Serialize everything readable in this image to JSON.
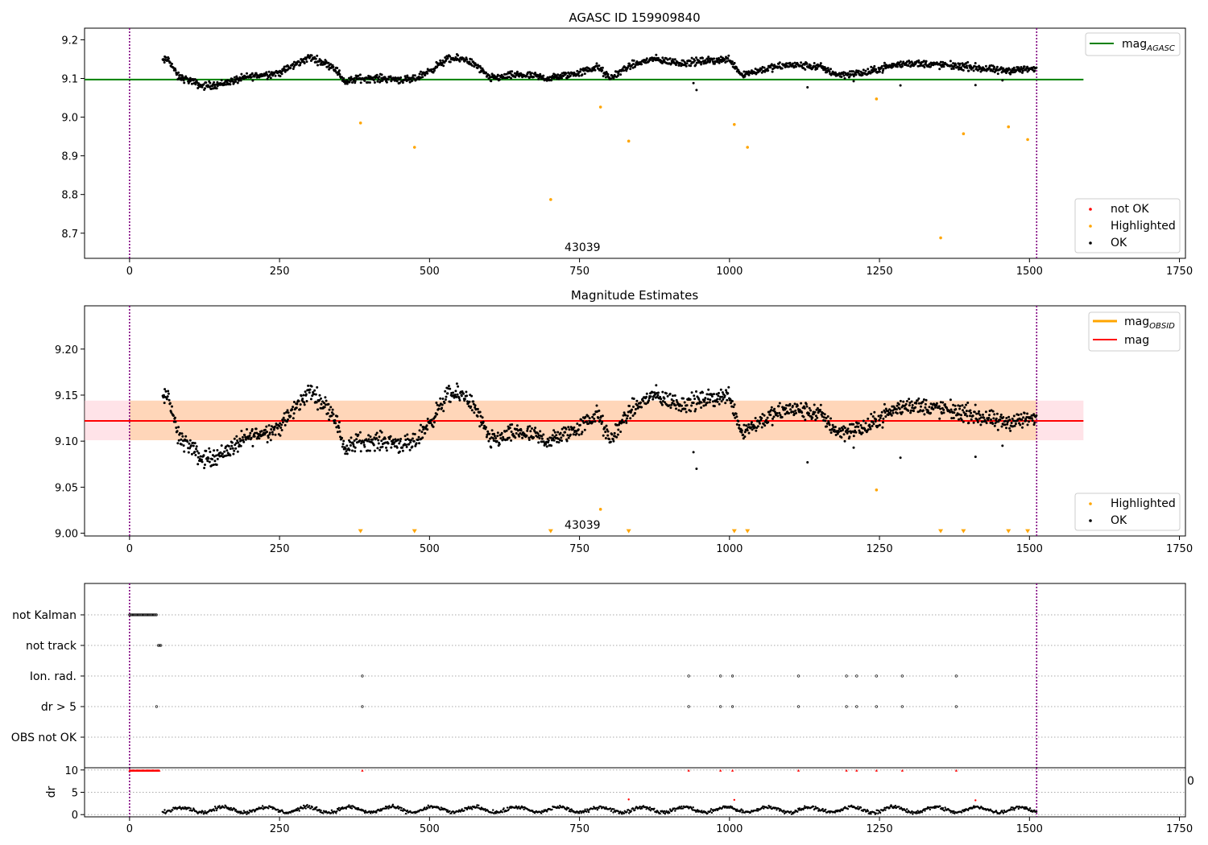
{
  "chart_data": [
    {
      "type": "scatter",
      "title": "AGASC ID 159909840",
      "xlim": [
        -75,
        1760
      ],
      "ylim": [
        8.635,
        9.23
      ],
      "xticks": [
        0,
        250,
        500,
        750,
        1000,
        1250,
        1500,
        1750
      ],
      "yticks": [
        8.7,
        8.8,
        8.9,
        9.0,
        9.1,
        9.2
      ],
      "ytick_labels": [
        "8.7",
        "8.8",
        "8.9",
        "9.0",
        "9.1",
        "9.2"
      ],
      "vlines": [
        0,
        1512
      ],
      "annotation": {
        "text": "43039",
        "x": 755
      },
      "reference_line": {
        "name": "mag",
        "sub": "AGASC",
        "value": 9.097,
        "color": "#008000"
      },
      "legend_upper": [
        {
          "label": "mag",
          "sub": "AGASC",
          "color": "#008000",
          "kind": "line"
        }
      ],
      "legend_lower": [
        {
          "label": "not OK",
          "color": "#ff0000",
          "kind": "dot"
        },
        {
          "label": "Highlighted",
          "color": "#ffa500",
          "kind": "dot"
        },
        {
          "label": "OK",
          "color": "#000000",
          "kind": "dot"
        }
      ],
      "series": [
        {
          "name": "OK",
          "color": "#000000",
          "points": "generated"
        },
        {
          "name": "Highlighted",
          "color": "#ffa500",
          "x": [
            385,
            475,
            702,
            785,
            832,
            1008,
            1030,
            1245,
            1352,
            1390,
            1465,
            1497
          ],
          "values": [
            8.985,
            8.922,
            8.787,
            9.026,
            8.938,
            8.981,
            8.922,
            9.047,
            8.688,
            8.957,
            8.975,
            8.942
          ]
        }
      ]
    },
    {
      "type": "scatter",
      "title": "Magnitude Estimates",
      "xlim": [
        -75,
        1760
      ],
      "ylim": [
        8.997,
        9.247
      ],
      "xticks": [
        0,
        250,
        500,
        750,
        1000,
        1250,
        1500,
        1750
      ],
      "yticks": [
        9.0,
        9.05,
        9.1,
        9.15,
        9.2
      ],
      "ytick_labels": [
        "9.00",
        "9.05",
        "9.10",
        "9.15",
        "9.20"
      ],
      "vlines": [
        0,
        1512
      ],
      "annotation": {
        "text": "43039",
        "x": 755
      },
      "mag_line": {
        "value": 9.122,
        "color": "#ff0000"
      },
      "mag_band": {
        "low": 9.101,
        "high": 9.144,
        "color": "#ffc0cb"
      },
      "mag_obsid_band": {
        "low": 9.101,
        "high": 9.144,
        "color": "#ffa500"
      },
      "legend_upper": [
        {
          "label": "mag",
          "sub": "OBSID",
          "color": "#ffa500",
          "kind": "line"
        },
        {
          "label": "mag",
          "color": "#ff0000",
          "kind": "line"
        }
      ],
      "legend_lower": [
        {
          "label": "Highlighted",
          "color": "#ffa500",
          "kind": "dot"
        },
        {
          "label": "OK",
          "color": "#000000",
          "kind": "dot"
        }
      ],
      "series": [
        {
          "name": "OK",
          "color": "#000000",
          "points": "generated"
        },
        {
          "name": "Highlighted",
          "color": "#ffa500",
          "x": [
            785,
            1245
          ],
          "values": [
            9.026,
            9.047
          ]
        },
        {
          "name": "Highlighted",
          "color": "#ffa500",
          "marker": "down-triangle",
          "x": [
            385,
            475,
            702,
            832,
            1008,
            1030,
            1352,
            1390,
            1465,
            1497
          ],
          "values": [
            9.0,
            9.0,
            9.0,
            9.0,
            9.0,
            9.0,
            9.0,
            9.0,
            9.0,
            9.0
          ]
        }
      ]
    },
    {
      "type": "scatter",
      "xlim": [
        -75,
        1760
      ],
      "vlines": [
        0,
        1512
      ],
      "flag_rows": [
        "not Kalman",
        "not track",
        "Ion. rad.",
        "dr > 5",
        "OBS not OK"
      ],
      "flags": {
        "not Kalman": {
          "x_range": [
            0,
            45
          ]
        },
        "not track": {
          "x": [
            48,
            50,
            52
          ]
        },
        "Ion. rad.": {
          "x": [
            388,
            932,
            985,
            1005,
            1115,
            1195,
            1212,
            1245,
            1288,
            1378
          ]
        },
        "dr > 5": {
          "x": [
            45,
            388,
            932,
            985,
            1005,
            1115,
            1195,
            1212,
            1245,
            1288,
            1378
          ]
        },
        "OBS not OK": {
          "x": []
        }
      }
    },
    {
      "type": "scatter",
      "xlim": [
        -75,
        1760
      ],
      "ylim": [
        -0.5,
        10.5
      ],
      "ylabel": "dr",
      "yticks": [
        0,
        5,
        10
      ],
      "ytick_labels": [
        "0",
        "5",
        "10"
      ],
      "right_label": "0",
      "xticks": [
        0,
        250,
        500,
        750,
        1000,
        1250,
        1500,
        1750
      ],
      "vlines": [
        0,
        1512
      ],
      "series": [
        {
          "name": "dr",
          "color": "#000000",
          "points": "generated"
        },
        {
          "name": "dr not OK",
          "color": "#ff0000",
          "x_range": [
            0,
            50
          ],
          "value": 9.9
        },
        {
          "name": "dr not OK",
          "color": "#ff0000",
          "x": [
            388,
            932,
            985,
            1005,
            1115,
            1195,
            1212,
            1245,
            1288,
            1378
          ],
          "values": [
            9.9,
            9.9,
            9.9,
            9.9,
            9.9,
            9.9,
            9.9,
            9.9,
            9.9,
            9.9
          ]
        },
        {
          "name": "dr not OK",
          "color": "#ff0000",
          "x": [
            832,
            1008,
            1410
          ],
          "values": [
            3.4,
            3.3,
            3.2
          ]
        }
      ]
    }
  ]
}
